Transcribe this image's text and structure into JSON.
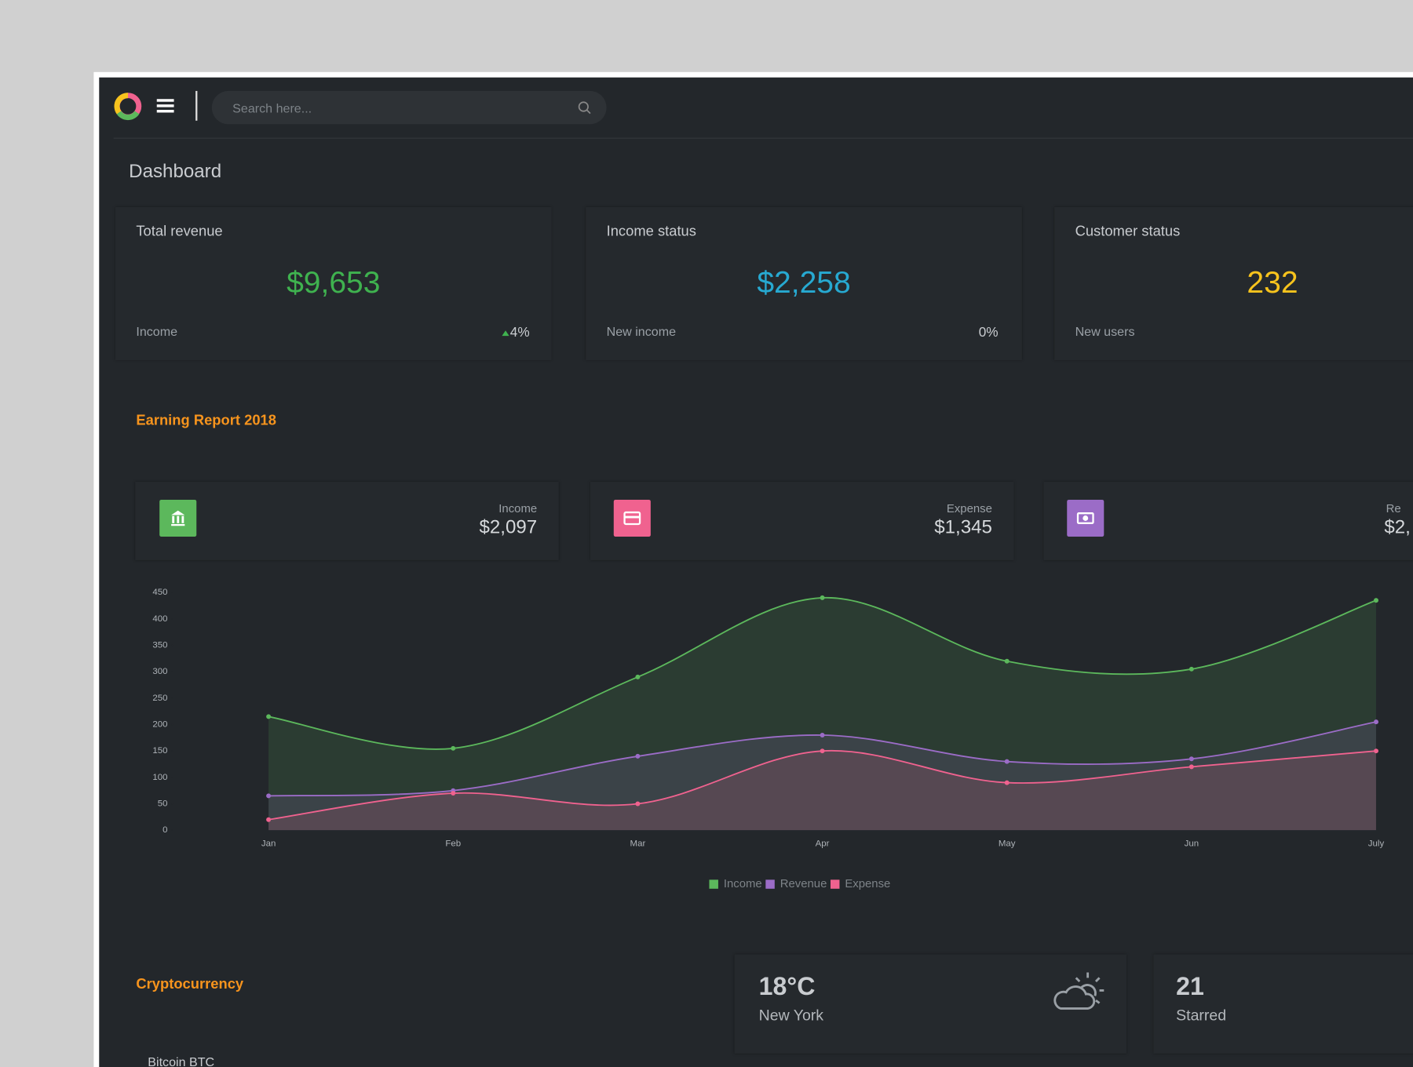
{
  "header": {
    "search_placeholder": "Search here..."
  },
  "page_title": "Dashboard",
  "stats": [
    {
      "title": "Total revenue",
      "value": "$9,653",
      "label": "Income",
      "change": "4%"
    },
    {
      "title": "Income status",
      "value": "$2,258",
      "label": "New income",
      "change": "0%"
    },
    {
      "title": "Customer status",
      "value": "232",
      "label": "New users"
    }
  ],
  "earning_report": {
    "title": "Earning Report 2018",
    "summaries": [
      {
        "label": "Income",
        "value": "$2,097"
      },
      {
        "label": "Expense",
        "value": "$1,345"
      },
      {
        "label": "Re",
        "value": "$2,"
      }
    ]
  },
  "chart_data": {
    "type": "area",
    "categories": [
      "Jan",
      "Feb",
      "Mar",
      "Apr",
      "May",
      "Jun",
      "July"
    ],
    "series": [
      {
        "name": "Income",
        "color": "#5cb85c",
        "values": [
          215,
          155,
          290,
          440,
          320,
          305,
          435
        ]
      },
      {
        "name": "Revenue",
        "color": "#9b6cc7",
        "values": [
          65,
          75,
          140,
          180,
          130,
          135,
          205
        ]
      },
      {
        "name": "Expense",
        "color": "#f0628f",
        "values": [
          20,
          70,
          50,
          150,
          90,
          120,
          150
        ]
      }
    ],
    "ylim": [
      0,
      450
    ],
    "yticks": [
      0,
      50,
      100,
      150,
      200,
      250,
      300,
      350,
      400,
      450
    ]
  },
  "crypto": {
    "title": "Cryptocurrency",
    "first_item": "Bitcoin BTC"
  },
  "weather": {
    "temperature": "18°C",
    "city": "New York"
  },
  "starred": {
    "count": "21",
    "label": "Starred"
  }
}
